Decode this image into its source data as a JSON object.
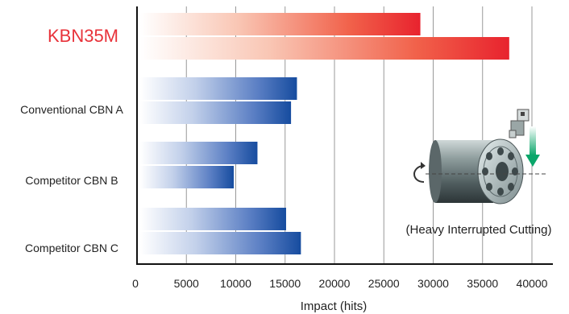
{
  "chart_data": {
    "type": "bar",
    "orientation": "horizontal",
    "xlabel": "Impact (hits)",
    "xlim": [
      0,
      42000
    ],
    "xticks": [
      0,
      5000,
      10000,
      15000,
      20000,
      25000,
      30000,
      35000,
      40000
    ],
    "grid": true,
    "categories": [
      "KBN35M",
      "Conventional CBN A",
      "Competitor CBN B",
      "Competitor CBN C"
    ],
    "highlight_category": "KBN35M",
    "values": [
      [
        28700,
        37700
      ],
      [
        16200,
        15600
      ],
      [
        12200,
        9800
      ],
      [
        15100,
        16600
      ]
    ],
    "annotation": "(Heavy Interrupted Cutting)",
    "colors": {
      "highlight": "#e8232e",
      "highlight_label": "#e8323a",
      "standard": "#1a4fa0",
      "grid": "#999999",
      "axis": "#111111"
    },
    "illustration": "cylindrical-workpiece-with-cutting-tool"
  }
}
